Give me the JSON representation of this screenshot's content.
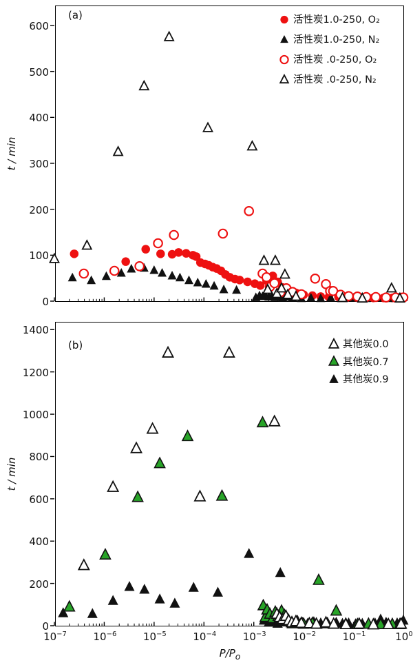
{
  "figure": {
    "background": "#ffffff",
    "xlabel_main": "P/P",
    "xlabel_sub": "o"
  },
  "colors": {
    "red": "#ee1111",
    "green": "#28a428",
    "black": "#111111",
    "open_fill": "#ffffff"
  },
  "chart_data": [
    {
      "type": "scatter",
      "panel_label": "(a)",
      "xscale": "log",
      "xlim": [
        1e-07,
        1
      ],
      "ylim": [
        0,
        645
      ],
      "ylabel": "t / min",
      "xlabel": "P/Po",
      "y_ticks": [
        0,
        100,
        200,
        300,
        400,
        500,
        600
      ],
      "x_tick_exponents": [
        -7,
        -6,
        -5,
        -4,
        -3,
        -2,
        -1,
        0
      ],
      "x_tick_labels_visible": false,
      "grid": false,
      "legend_position": "top-right",
      "draw_order": "normal",
      "series": [
        {
          "name": "活性炭1.0-250, O₂",
          "marker": "circle",
          "color": "red",
          "open": false,
          "size": 12.5,
          "points": [
            [
              2.5e-07,
              103
            ],
            [
              2.7e-06,
              86
            ],
            [
              6.8e-06,
              113
            ],
            [
              1.35e-05,
              103
            ],
            [
              2.3e-05,
              102
            ],
            [
              3.1e-05,
              106
            ],
            [
              4.4e-05,
              104
            ],
            [
              6e-05,
              100
            ],
            [
              7e-05,
              97
            ],
            [
              8.5e-05,
              84
            ],
            [
              0.000105,
              81
            ],
            [
              0.000125,
              78
            ],
            [
              0.00015,
              74
            ],
            [
              0.00018,
              71
            ],
            [
              0.00022,
              66
            ],
            [
              0.00027,
              58
            ],
            [
              0.00033,
              52
            ],
            [
              0.00042,
              48
            ],
            [
              0.00052,
              46
            ],
            [
              0.00075,
              42
            ],
            [
              0.00105,
              38
            ],
            [
              0.00135,
              34
            ],
            [
              0.0018,
              45
            ],
            [
              0.0024,
              55
            ],
            [
              0.003,
              42
            ],
            [
              0.0037,
              30
            ],
            [
              0.005,
              24
            ],
            [
              0.007,
              18
            ],
            [
              0.01,
              14
            ],
            [
              0.015,
              12
            ],
            [
              0.022,
              10
            ],
            [
              0.032,
              9
            ],
            [
              0.05,
              9
            ],
            [
              0.075,
              8
            ],
            [
              0.11,
              8
            ],
            [
              0.17,
              8
            ],
            [
              0.25,
              7
            ],
            [
              0.4,
              7
            ],
            [
              0.6,
              7
            ],
            [
              0.9,
              9
            ]
          ]
        },
        {
          "name": "活性炭1.0-250, N₂",
          "marker": "triangle",
          "color": "black",
          "open": false,
          "size": 13,
          "points": [
            [
              2.3e-07,
              51
            ],
            [
              5.5e-07,
              45
            ],
            [
              1.1e-06,
              54
            ],
            [
              2.2e-06,
              61
            ],
            [
              3.5e-06,
              70
            ],
            [
              6.3e-06,
              72
            ],
            [
              1e-05,
              67
            ],
            [
              1.45e-05,
              61
            ],
            [
              2.3e-05,
              55
            ],
            [
              3.3e-05,
              51
            ],
            [
              5e-05,
              45
            ],
            [
              7.5e-05,
              40
            ],
            [
              0.00011,
              37
            ],
            [
              0.00016,
              33
            ],
            [
              0.00025,
              25
            ],
            [
              0.00045,
              24
            ],
            [
              0.0011,
              8
            ],
            [
              0.0013,
              12
            ],
            [
              0.0015,
              10
            ],
            [
              0.0017,
              13
            ],
            [
              0.002,
              9
            ],
            [
              0.0023,
              11
            ],
            [
              0.0027,
              8
            ],
            [
              0.0032,
              10
            ],
            [
              0.0038,
              7
            ],
            [
              0.0045,
              9
            ],
            [
              0.006,
              7
            ],
            [
              0.009,
              6
            ],
            [
              0.014,
              7
            ],
            [
              0.022,
              6
            ],
            [
              0.035,
              7
            ],
            [
              0.06,
              6
            ],
            [
              0.1,
              7
            ],
            [
              0.18,
              6
            ],
            [
              0.3,
              7
            ],
            [
              0.5,
              6
            ],
            [
              0.8,
              7
            ],
            [
              1,
              8
            ]
          ]
        },
        {
          "name": "活性炭 .0-250, O₂",
          "marker": "circle",
          "color": "red",
          "open": true,
          "size": 12.5,
          "points": [
            [
              3.9e-07,
              60
            ],
            [
              1.6e-06,
              66
            ],
            [
              5.1e-06,
              76
            ],
            [
              1.2e-05,
              126
            ],
            [
              2.5e-05,
              144
            ],
            [
              0.00024,
              147
            ],
            [
              0.0008,
              196
            ],
            [
              0.0015,
              60
            ],
            [
              0.0018,
              52
            ],
            [
              0.0021,
              31
            ],
            [
              0.0026,
              39
            ],
            [
              0.0034,
              19
            ],
            [
              0.0045,
              28
            ],
            [
              0.006,
              20
            ],
            [
              0.009,
              15
            ],
            [
              0.017,
              49
            ],
            [
              0.028,
              37
            ],
            [
              0.034,
              22
            ],
            [
              0.039,
              22
            ],
            [
              0.055,
              14
            ],
            [
              0.08,
              11
            ],
            [
              0.12,
              10
            ],
            [
              0.18,
              9
            ],
            [
              0.28,
              9
            ],
            [
              0.45,
              8
            ],
            [
              0.7,
              8
            ],
            [
              1,
              8
            ]
          ]
        },
        {
          "name": "活性炭 .0-250, N₂",
          "marker": "triangle",
          "color": "black",
          "open": true,
          "size": 13,
          "points": [
            [
              1e-07,
              92
            ],
            [
              4.5e-07,
              121
            ],
            [
              1.9e-06,
              325
            ],
            [
              6.3e-06,
              468
            ],
            [
              2e-05,
              575
            ],
            [
              0.00012,
              377
            ],
            [
              0.00093,
              337
            ],
            [
              0.0016,
              88
            ],
            [
              0.0027,
              88
            ],
            [
              0.0042,
              58
            ],
            [
              0.0019,
              25
            ],
            [
              0.0029,
              16
            ],
            [
              0.0036,
              28
            ],
            [
              0.0048,
              14
            ],
            [
              0.007,
              10
            ],
            [
              0.06,
              7
            ],
            [
              0.15,
              6
            ],
            [
              0.58,
              28
            ],
            [
              0.85,
              6
            ]
          ]
        }
      ]
    },
    {
      "type": "scatter",
      "panel_label": "(b)",
      "xscale": "log",
      "xlim": [
        1e-07,
        1
      ],
      "ylim": [
        0,
        1440
      ],
      "ylabel": "t / min",
      "xlabel": "P/Po",
      "y_ticks": [
        0,
        200,
        400,
        600,
        800,
        1000,
        1200,
        1400
      ],
      "x_tick_exponents": [
        -7,
        -6,
        -5,
        -4,
        -3,
        -2,
        -1,
        0
      ],
      "x_tick_labels_visible": true,
      "grid": false,
      "legend_position": "top-right",
      "draw_order": "reverse",
      "series": [
        {
          "name": "其他炭0.0",
          "marker": "triangle",
          "color": "black",
          "open": true,
          "size": 15,
          "points": [
            [
              3.9e-07,
              285
            ],
            [
              1.5e-06,
              655
            ],
            [
              4.4e-06,
              838
            ],
            [
              9.3e-06,
              930
            ],
            [
              1.9e-05,
              1290
            ],
            [
              8.3e-05,
              610
            ],
            [
              0.00032,
              1290
            ],
            [
              0.0026,
              965
            ],
            [
              0.0029,
              55
            ],
            [
              0.0033,
              40
            ],
            [
              0.0038,
              30
            ],
            [
              0.0044,
              45
            ],
            [
              0.005,
              25
            ],
            [
              0.0058,
              15
            ],
            [
              0.007,
              20
            ],
            [
              0.009,
              12
            ],
            [
              0.013,
              10
            ],
            [
              0.018,
              8
            ],
            [
              0.028,
              14
            ],
            [
              0.04,
              8
            ],
            [
              0.07,
              6
            ],
            [
              0.13,
              8
            ],
            [
              0.25,
              5
            ],
            [
              0.5,
              6
            ],
            [
              0.9,
              8
            ]
          ]
        },
        {
          "name": "其他炭0.7",
          "marker": "triangle",
          "color": "green",
          "open": false,
          "size": 15,
          "points": [
            [
              2e-07,
              89
            ],
            [
              1.05e-06,
              335
            ],
            [
              4.7e-06,
              607
            ],
            [
              1.3e-05,
              767
            ],
            [
              4.7e-05,
              895
            ],
            [
              0.00023,
              613
            ],
            [
              0.0015,
              960
            ],
            [
              0.00155,
              95
            ],
            [
              0.0017,
              40
            ],
            [
              0.00185,
              75
            ],
            [
              0.0021,
              55
            ],
            [
              0.0024,
              35
            ],
            [
              0.0027,
              65
            ],
            [
              0.0031,
              45
            ],
            [
              0.0036,
              70
            ],
            [
              0.0041,
              50
            ],
            [
              0.006,
              10
            ],
            [
              0.01,
              8
            ],
            [
              0.015,
              12
            ],
            [
              0.02,
              215
            ],
            [
              0.03,
              10
            ],
            [
              0.045,
              70
            ],
            [
              0.07,
              8
            ],
            [
              0.12,
              6
            ],
            [
              0.2,
              8
            ],
            [
              0.35,
              6
            ],
            [
              0.6,
              7
            ],
            [
              0.85,
              6
            ]
          ]
        },
        {
          "name": "其他炭0.9",
          "marker": "triangle",
          "color": "black",
          "open": false,
          "size": 15,
          "points": [
            [
              1.5e-07,
              60
            ],
            [
              5.8e-07,
              56
            ],
            [
              1.5e-06,
              118
            ],
            [
              3.2e-06,
              184
            ],
            [
              6.4e-06,
              171
            ],
            [
              1.3e-05,
              125
            ],
            [
              2.6e-05,
              105
            ],
            [
              6.2e-05,
              180
            ],
            [
              0.00019,
              157
            ],
            [
              0.0008,
              340
            ],
            [
              0.0034,
              250
            ],
            [
              0.0016,
              25
            ],
            [
              0.002,
              15
            ],
            [
              0.0025,
              20
            ],
            [
              0.003,
              10
            ],
            [
              0.004,
              18
            ],
            [
              0.0055,
              12
            ],
            [
              0.0075,
              25
            ],
            [
              0.0095,
              15
            ],
            [
              0.012,
              10
            ],
            [
              0.016,
              18
            ],
            [
              0.022,
              12
            ],
            [
              0.03,
              10
            ],
            [
              0.045,
              15
            ],
            [
              0.06,
              10
            ],
            [
              0.08,
              12
            ],
            [
              0.11,
              8
            ],
            [
              0.15,
              10
            ],
            [
              0.2,
              8
            ],
            [
              0.27,
              12
            ],
            [
              0.35,
              30
            ],
            [
              0.45,
              15
            ],
            [
              0.6,
              10
            ],
            [
              0.75,
              12
            ],
            [
              0.9,
              10
            ],
            [
              1,
              25
            ]
          ]
        }
      ]
    }
  ]
}
